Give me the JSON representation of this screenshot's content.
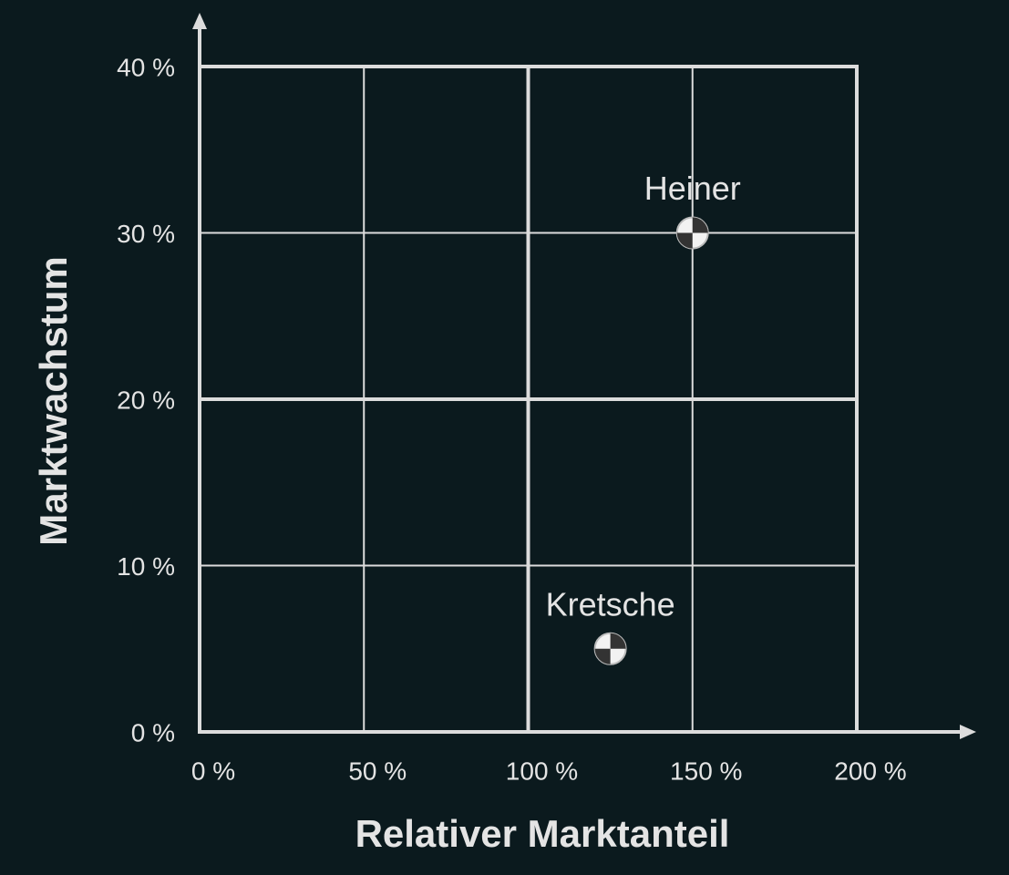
{
  "chart_data": {
    "type": "scatter",
    "x_label": "Relativer Marktanteil",
    "y_label": "Marktwachstum",
    "xlim": [
      0,
      200
    ],
    "ylim": [
      0,
      40
    ],
    "xticks": [
      {
        "value": 0,
        "label": "0 %"
      },
      {
        "value": 50,
        "label": "50 %"
      },
      {
        "value": 100,
        "label": "100 %"
      },
      {
        "value": 150,
        "label": "150 %"
      },
      {
        "value": 200,
        "label": "200 %"
      }
    ],
    "yticks": [
      {
        "value": 0,
        "label": "0 %"
      },
      {
        "value": 10,
        "label": "10 %"
      },
      {
        "value": 20,
        "label": "20 %"
      },
      {
        "value": 30,
        "label": "30 %"
      },
      {
        "value": 40,
        "label": "40 %"
      }
    ],
    "grid": true,
    "quadrant_lines": {
      "x": 100,
      "y": 20
    },
    "color": "#dcdcdc",
    "points": [
      {
        "label": "Heiner",
        "x": 150,
        "y": 30
      },
      {
        "label": "Kretsche",
        "x": 125,
        "y": 5
      }
    ]
  }
}
